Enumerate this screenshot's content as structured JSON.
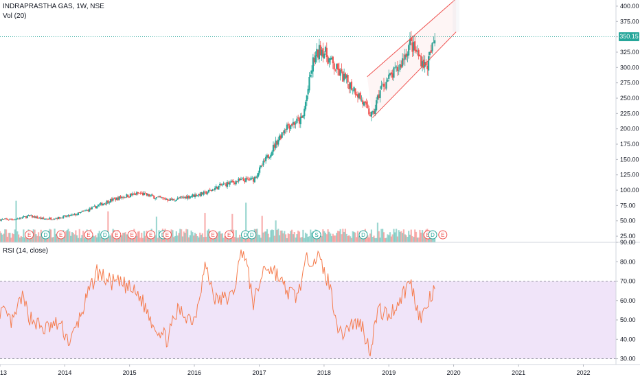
{
  "header": {
    "symbol_line": "INDRAPRASTHA GAS, 1W, NSE",
    "volume_label": "Vol (20)",
    "rsi_label": "RSI (14, close)"
  },
  "last_price_label": "350.15",
  "colors": {
    "up": "#26a69a",
    "down": "#ef5350",
    "rsi_line": "#f57c4d",
    "rsi_band": "#e9d9f7",
    "channel": "#ef5350",
    "price_line": "#26a69a",
    "grid": "#e6e6e6"
  },
  "chart_data": [
    {
      "type": "candlestick",
      "title": "INDRAPRASTHA GAS, 1W, NSE",
      "y_scale": "linear",
      "ylim": [
        15,
        410
      ],
      "y_ticks": [
        "400.00",
        "375.00",
        "350.00",
        "325.00",
        "300.00",
        "275.00",
        "250.00",
        "225.00",
        "200.00",
        "175.00",
        "150.00",
        "125.00",
        "100.00",
        "75.00",
        "50.00",
        "25.00"
      ],
      "x_ticks": [
        "2013",
        "2014",
        "2015",
        "2016",
        "2017",
        "2018",
        "2019",
        "2020",
        "2021",
        "2022"
      ],
      "xlim": [
        "2013-01-01",
        "2022-06-30"
      ],
      "last_price": 350.15,
      "close_path": [
        [
          "2013-01-01",
          52
        ],
        [
          "2013-04-01",
          53
        ],
        [
          "2013-06-15",
          58
        ],
        [
          "2013-09-01",
          53
        ],
        [
          "2013-12-01",
          55
        ],
        [
          "2014-03-01",
          60
        ],
        [
          "2014-06-01",
          70
        ],
        [
          "2014-09-01",
          82
        ],
        [
          "2014-12-01",
          90
        ],
        [
          "2015-03-01",
          95
        ],
        [
          "2015-06-01",
          88
        ],
        [
          "2015-09-01",
          84
        ],
        [
          "2015-12-01",
          90
        ],
        [
          "2016-03-01",
          95
        ],
        [
          "2016-06-01",
          108
        ],
        [
          "2016-09-01",
          115
        ],
        [
          "2016-12-01",
          118
        ],
        [
          "2017-03-01",
          160
        ],
        [
          "2017-06-01",
          205
        ],
        [
          "2017-09-01",
          215
        ],
        [
          "2017-11-01",
          310
        ],
        [
          "2017-12-15",
          332
        ],
        [
          "2018-01-15",
          320
        ],
        [
          "2018-03-01",
          300
        ],
        [
          "2018-05-01",
          280
        ],
        [
          "2018-07-01",
          262
        ],
        [
          "2018-09-01",
          230
        ],
        [
          "2018-10-01",
          220
        ],
        [
          "2018-11-15",
          265
        ],
        [
          "2019-01-01",
          282
        ],
        [
          "2019-03-01",
          300
        ],
        [
          "2019-05-01",
          340
        ],
        [
          "2019-06-15",
          320
        ],
        [
          "2019-08-01",
          300
        ],
        [
          "2019-09-01",
          330
        ],
        [
          "2019-09-20",
          350
        ]
      ],
      "volume_spikes": [
        [
          "2013-04-01",
          110
        ],
        [
          "2014-09-01",
          82
        ],
        [
          "2015-06-01",
          68
        ],
        [
          "2016-03-01",
          78
        ],
        [
          "2016-08-01",
          75
        ],
        [
          "2016-10-15",
          105
        ],
        [
          "2017-01-15",
          70
        ],
        [
          "2017-04-01",
          58
        ],
        [
          "2018-11-01",
          52
        ]
      ],
      "event_markers": [
        [
          "2013-06-15",
          "E"
        ],
        [
          "2013-09-15",
          "D"
        ],
        [
          "2013-12-10",
          "E"
        ],
        [
          "2014-05-15",
          "E"
        ],
        [
          "2014-08-15",
          "D"
        ],
        [
          "2014-10-20",
          "E"
        ],
        [
          "2015-01-15",
          "E"
        ],
        [
          "2015-05-01",
          "E"
        ],
        [
          "2015-07-10",
          "D"
        ],
        [
          "2015-08-01",
          "E"
        ],
        [
          "2016-04-15",
          "E"
        ],
        [
          "2016-07-15",
          "E"
        ],
        [
          "2016-10-15",
          "D"
        ],
        [
          "2016-11-20",
          "D"
        ],
        [
          "2017-11-20",
          "S"
        ],
        [
          "2018-08-10",
          "D"
        ],
        [
          "2019-08-10",
          "E"
        ],
        [
          "2019-09-05",
          "D"
        ],
        [
          "2019-11-01",
          "E"
        ]
      ],
      "channel": {
        "lower": [
          [
            "2018-10-01",
            218
          ],
          [
            "2020-01-15",
            358
          ]
        ],
        "upper": [
          [
            "2018-09-01",
            285
          ],
          [
            "2020-01-15",
            412
          ]
        ]
      }
    },
    {
      "type": "line",
      "title": "RSI (14, close)",
      "ylim": [
        27,
        90
      ],
      "y_ticks": [
        "90.00",
        "80.00",
        "70.00",
        "60.00",
        "50.00",
        "40.00",
        "30.00"
      ],
      "band": [
        30,
        70
      ],
      "series": [
        {
          "values": [
            [
              "2013-01-01",
              55
            ],
            [
              "2013-03-15",
              48
            ],
            [
              "2013-05-01",
              62
            ],
            [
              "2013-06-15",
              52
            ],
            [
              "2013-09-01",
              45
            ],
            [
              "2013-12-01",
              48
            ],
            [
              "2014-02-01",
              38
            ],
            [
              "2014-05-01",
              60
            ],
            [
              "2014-07-01",
              75
            ],
            [
              "2014-09-01",
              70
            ],
            [
              "2014-12-01",
              68
            ],
            [
              "2015-03-01",
              62
            ],
            [
              "2015-05-15",
              48
            ],
            [
              "2015-08-01",
              40
            ],
            [
              "2015-10-01",
              55
            ],
            [
              "2016-01-01",
              50
            ],
            [
              "2016-03-01",
              78
            ],
            [
              "2016-05-01",
              60
            ],
            [
              "2016-08-01",
              62
            ],
            [
              "2016-10-01",
              88
            ],
            [
              "2016-12-01",
              58
            ],
            [
              "2017-02-01",
              78
            ],
            [
              "2017-04-01",
              75
            ],
            [
              "2017-06-01",
              65
            ],
            [
              "2017-08-01",
              62
            ],
            [
              "2017-10-01",
              82
            ],
            [
              "2017-12-01",
              82
            ],
            [
              "2018-02-01",
              68
            ],
            [
              "2018-04-01",
              42
            ],
            [
              "2018-06-01",
              48
            ],
            [
              "2018-08-01",
              48
            ],
            [
              "2018-09-15",
              34
            ],
            [
              "2018-11-01",
              55
            ],
            [
              "2019-01-01",
              52
            ],
            [
              "2019-03-01",
              60
            ],
            [
              "2019-05-01",
              70
            ],
            [
              "2019-07-01",
              50
            ],
            [
              "2019-09-01",
              63
            ],
            [
              "2019-09-20",
              64
            ]
          ]
        }
      ]
    }
  ]
}
